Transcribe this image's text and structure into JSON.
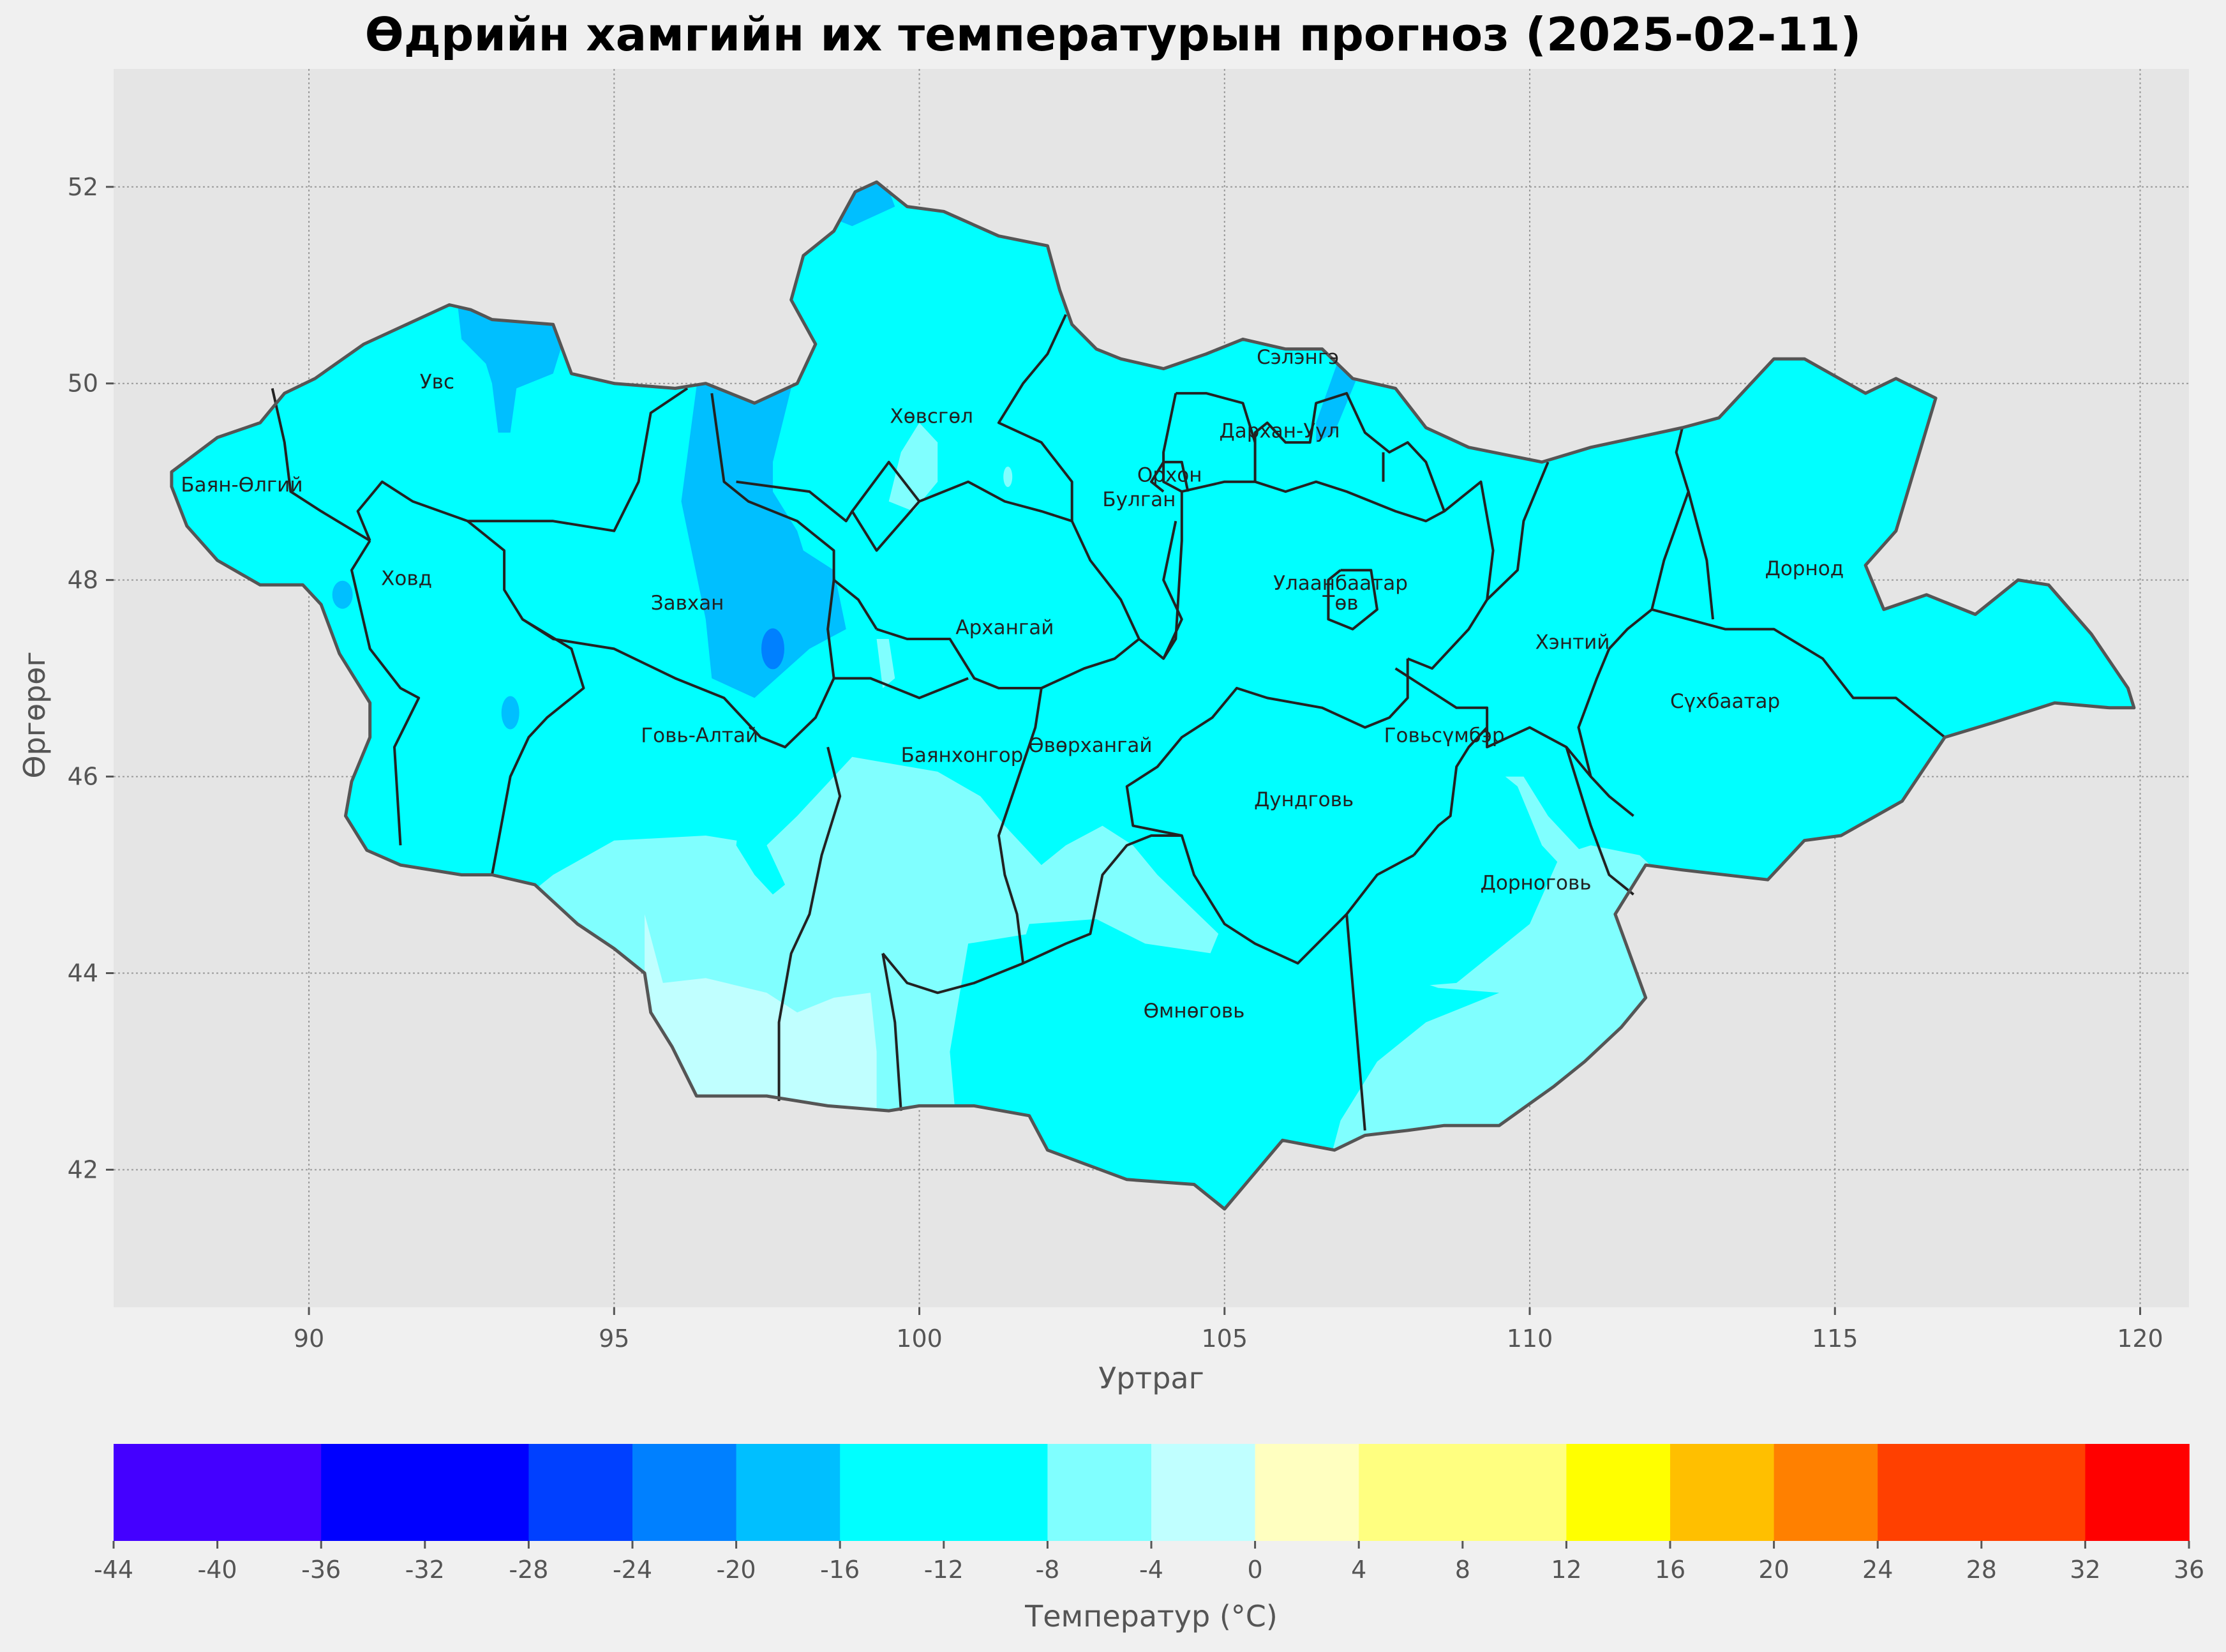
{
  "title": "Өдрийн хамгийн их температурын прогноз (2025-02-11)",
  "axes": {
    "xlabel": "Уртраг",
    "ylabel": "Өргөрөг",
    "xticks": [
      "90",
      "95",
      "100",
      "105",
      "110",
      "115",
      "120"
    ],
    "yticks": [
      "42",
      "44",
      "46",
      "48",
      "50",
      "52"
    ],
    "xlim": [
      86.8,
      120.8
    ],
    "ylim": [
      40.6,
      53.2
    ],
    "grid": true
  },
  "provinces": [
    {
      "name": "Увс",
      "lon": 92.1,
      "lat": 49.95
    },
    {
      "name": "Баян-Өлгий",
      "lon": 88.9,
      "lat": 48.9
    },
    {
      "name": "Ховд",
      "lon": 91.6,
      "lat": 47.95
    },
    {
      "name": "Завхан",
      "lon": 96.2,
      "lat": 47.7
    },
    {
      "name": "Хөвсгөл",
      "lon": 100.2,
      "lat": 49.6
    },
    {
      "name": "Архангай",
      "lon": 101.4,
      "lat": 47.45
    },
    {
      "name": "Булган",
      "lon": 103.6,
      "lat": 48.75
    },
    {
      "name": "Орхон",
      "lon": 104.1,
      "lat": 49.0
    },
    {
      "name": "Сэлэнгэ",
      "lon": 106.2,
      "lat": 50.2
    },
    {
      "name": "Дархан-Уул",
      "lon": 105.9,
      "lat": 49.45
    },
    {
      "name": "Улаанбаатар",
      "lon": 106.9,
      "lat": 47.9
    },
    {
      "name": "Төв",
      "lon": 106.9,
      "lat": 47.7
    },
    {
      "name": "Хэнтий",
      "lon": 110.7,
      "lat": 47.3
    },
    {
      "name": "Дорнод",
      "lon": 114.5,
      "lat": 48.05
    },
    {
      "name": "Сүхбаатар",
      "lon": 113.2,
      "lat": 46.7
    },
    {
      "name": "Говь-Алтай",
      "lon": 96.4,
      "lat": 46.35
    },
    {
      "name": "Баянхонгор",
      "lon": 100.7,
      "lat": 46.15
    },
    {
      "name": "Өвөрхангай",
      "lon": 102.8,
      "lat": 46.25
    },
    {
      "name": "Дундговь",
      "lon": 106.3,
      "lat": 45.7
    },
    {
      "name": "Говьсүмбэр",
      "lon": 108.6,
      "lat": 46.35
    },
    {
      "name": "Дорноговь",
      "lon": 110.1,
      "lat": 44.85
    },
    {
      "name": "Өмнөговь",
      "lon": 104.5,
      "lat": 43.55
    }
  ],
  "colorbar": {
    "label": "Температур (°C)",
    "ticks": [
      -44,
      -40,
      -36,
      -32,
      -28,
      -24,
      -20,
      -16,
      -12,
      -8,
      -4,
      0,
      4,
      8,
      12,
      16,
      20,
      24,
      28,
      32,
      36
    ],
    "tick_labels": [
      "-44",
      "-40",
      "-36",
      "-32",
      "-28",
      "-24",
      "-20",
      "-16",
      "-12",
      "-8",
      "-4",
      "0",
      "4",
      "8",
      "12",
      "16",
      "20",
      "24",
      "28",
      "32",
      "36"
    ],
    "bins": [
      {
        "from": -44,
        "to": -40,
        "color": "#4400ff"
      },
      {
        "from": -40,
        "to": -36,
        "color": "#4400ff"
      },
      {
        "from": -36,
        "to": -32,
        "color": "#0000ff"
      },
      {
        "from": -32,
        "to": -28,
        "color": "#0000ff"
      },
      {
        "from": -28,
        "to": -24,
        "color": "#0040ff"
      },
      {
        "from": -24,
        "to": -20,
        "color": "#0080ff"
      },
      {
        "from": -20,
        "to": -16,
        "color": "#00bfff"
      },
      {
        "from": -16,
        "to": -12,
        "color": "#00ffff"
      },
      {
        "from": -12,
        "to": -8,
        "color": "#00ffff"
      },
      {
        "from": -8,
        "to": -4,
        "color": "#80ffff"
      },
      {
        "from": -4,
        "to": 0,
        "color": "#c0ffff"
      },
      {
        "from": 0,
        "to": 4,
        "color": "#ffffc0"
      },
      {
        "from": 4,
        "to": 8,
        "color": "#ffff80"
      },
      {
        "from": 8,
        "to": 12,
        "color": "#ffff80"
      },
      {
        "from": 12,
        "to": 16,
        "color": "#ffff00"
      },
      {
        "from": 16,
        "to": 20,
        "color": "#ffbf00"
      },
      {
        "from": 20,
        "to": 24,
        "color": "#ff8000"
      },
      {
        "from": 24,
        "to": 28,
        "color": "#ff4000"
      },
      {
        "from": 28,
        "to": 32,
        "color": "#ff4000"
      },
      {
        "from": 32,
        "to": 36,
        "color": "#ff0000"
      }
    ]
  },
  "colors": {
    "panel_bg": "#e5e5e5",
    "page_bg": "#f0f0f0",
    "base_fill": "#00ffff",
    "cold_fill": "#00bfff",
    "colder_fill": "#0080ff",
    "mild_fill": "#80ffff",
    "warm_fill": "#c0ffff"
  }
}
